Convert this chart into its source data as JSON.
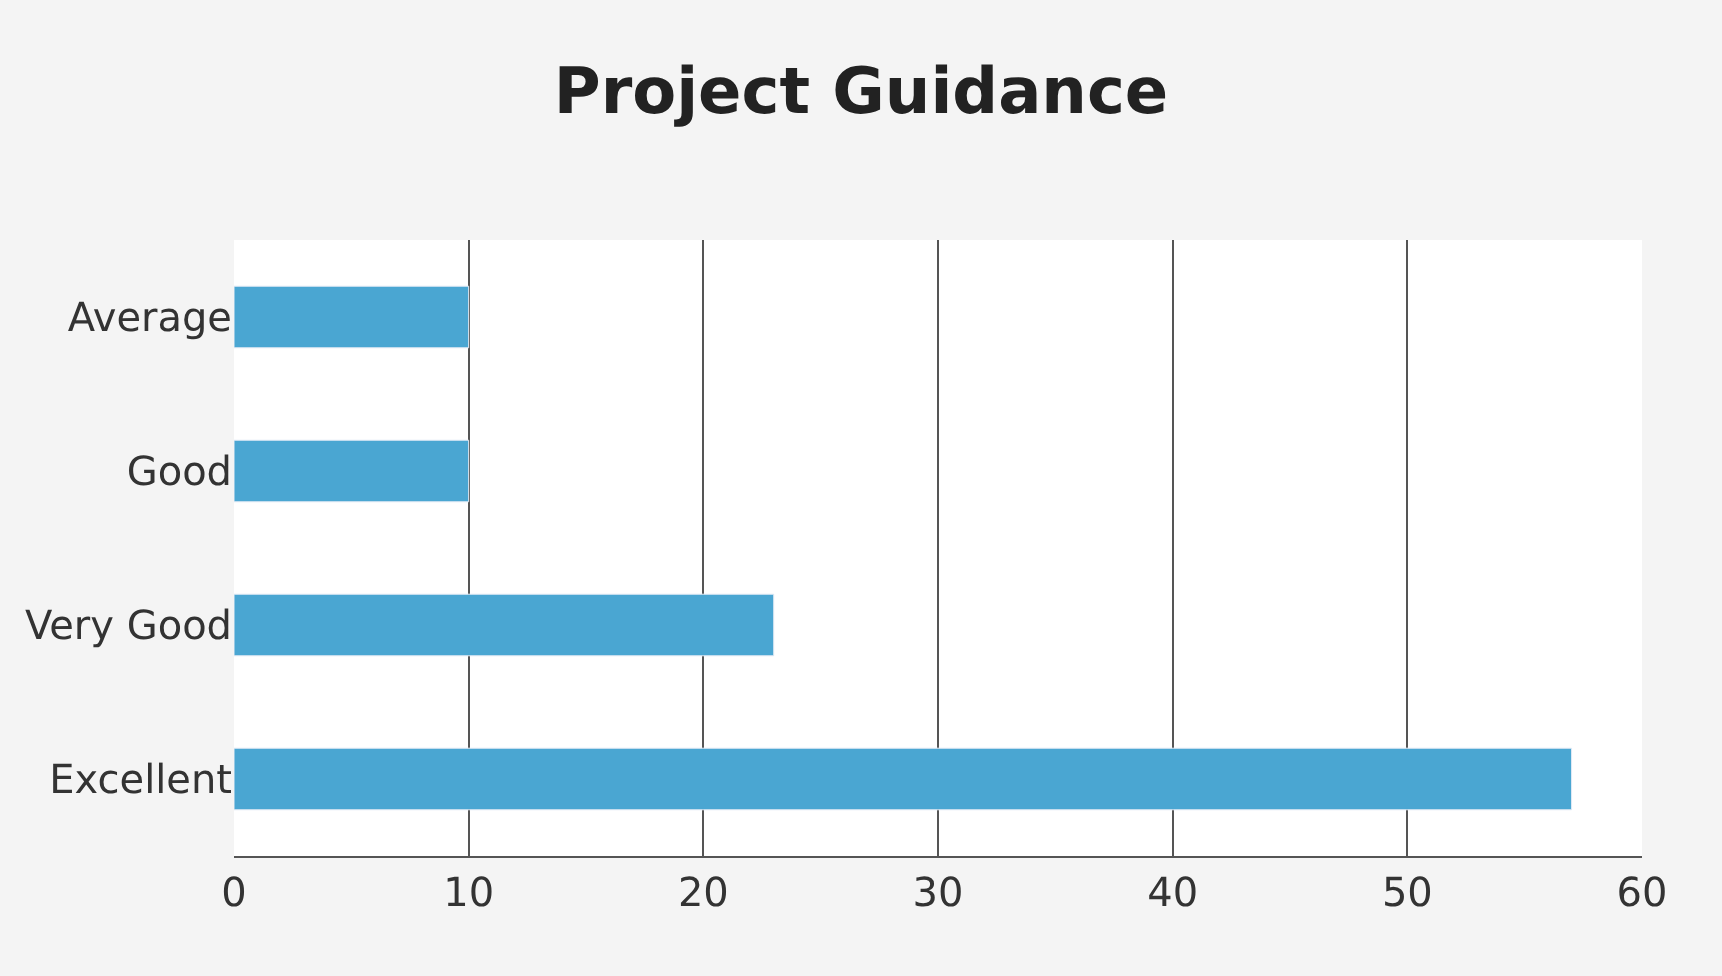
{
  "chart_data": {
    "type": "bar",
    "orientation": "horizontal",
    "title": "Project Guidance",
    "categories": [
      "Average",
      "Good",
      "Very Good",
      "Excellent"
    ],
    "values": [
      10,
      10,
      23,
      57
    ],
    "color": "#4aa6d2",
    "xlim": [
      0,
      60
    ],
    "xticks": [
      0,
      10,
      20,
      30,
      40,
      50,
      60
    ],
    "grid": "x"
  }
}
